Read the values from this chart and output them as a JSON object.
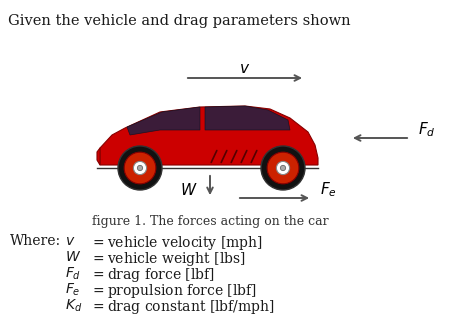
{
  "title_text": "Given the vehicle and drag parameters shown",
  "caption": "figure 1. The forces acting on the car",
  "where_label": "Where:",
  "def_lines": [
    {
      "sym": "v",
      "text": " = vehicle velocity [mph]"
    },
    {
      "sym": "W",
      "text": " = vehicle weight [lbs]"
    },
    {
      "sym": "F_d",
      "text": " = drag force [lbf]"
    },
    {
      "sym": "F_e",
      "text": " = propulsion force [lbf]"
    },
    {
      "sym": "K_d",
      "text": " = drag constant [lbf/mph]"
    }
  ],
  "bg_color": "#ffffff",
  "text_color": "#1a1a1a",
  "car_body_color": "#cc0000",
  "car_edge_color": "#880000",
  "wheel_color": "#111111",
  "arrow_color": "#555555",
  "caption_color": "#333333"
}
